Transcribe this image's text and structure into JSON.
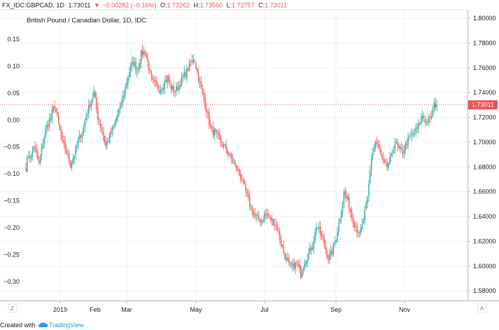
{
  "header": {
    "symbol": "FX_IDC:GBPCAD, 1D",
    "last": "1.73011",
    "change": "−0.00282 (−0.16%)",
    "o_label": "O:",
    "o": "1.73262",
    "h_label": "H:",
    "h": "1.73560",
    "l_label": "L:",
    "l": "1.72757",
    "c_label": "C:",
    "c": "1.73011"
  },
  "colors": {
    "up": "#26a69a",
    "down": "#ef5350",
    "grid": "#eef0f3",
    "axis": "#b2b5be",
    "price_line": "#ef5350",
    "brand": "#2196f3"
  },
  "chart_data": {
    "type": "candlestick",
    "title": "British Pound / Canadian Dollar, 1D, IDC",
    "x_ticks": [
      "2019",
      "Feb",
      "Mar",
      "May",
      "Jul",
      "Sep",
      "Nov"
    ],
    "right_axis": {
      "ticks": [
        "1.80000",
        "1.78000",
        "1.76000",
        "1.74000",
        "1.72000",
        "1.70000",
        "1.68000",
        "1.66000",
        "1.64000",
        "1.62000",
        "1.60000",
        "1.58000"
      ],
      "range": [
        1.5722,
        1.8068
      ]
    },
    "left_axis": {
      "ticks": [
        "0.15",
        "0.10",
        "0.05",
        "0.00",
        "−0.05",
        "−0.10",
        "−0.15",
        "−0.20",
        "−0.25",
        "−0.30"
      ],
      "range": [
        -0.3353,
        0.2047
      ]
    },
    "last_price": 1.73011,
    "last_price_label": "1.73011",
    "close_path": [
      [
        0,
        1.68
      ],
      [
        2,
        1.69
      ],
      [
        4,
        1.688
      ],
      [
        6,
        1.697
      ],
      [
        8,
        1.69
      ],
      [
        10,
        1.682
      ],
      [
        13,
        1.7
      ],
      [
        16,
        1.713
      ],
      [
        19,
        1.72
      ],
      [
        22,
        1.73
      ],
      [
        25,
        1.714
      ],
      [
        28,
        1.7
      ],
      [
        31,
        1.692
      ],
      [
        34,
        1.682
      ],
      [
        37,
        1.69
      ],
      [
        40,
        1.702
      ],
      [
        43,
        1.708
      ],
      [
        46,
        1.721
      ],
      [
        49,
        1.731
      ],
      [
        52,
        1.74
      ],
      [
        55,
        1.72
      ],
      [
        58,
        1.71
      ],
      [
        61,
        1.697
      ],
      [
        64,
        1.705
      ],
      [
        67,
        1.712
      ],
      [
        70,
        1.722
      ],
      [
        73,
        1.732
      ],
      [
        76,
        1.744
      ],
      [
        79,
        1.757
      ],
      [
        82,
        1.765
      ],
      [
        85,
        1.758
      ],
      [
        88,
        1.771
      ],
      [
        91,
        1.773
      ],
      [
        94,
        1.76
      ],
      [
        96,
        1.749
      ],
      [
        99,
        1.746
      ],
      [
        102,
        1.743
      ],
      [
        105,
        1.747
      ],
      [
        108,
        1.752
      ],
      [
        111,
        1.744
      ],
      [
        114,
        1.741
      ],
      [
        117,
        1.746
      ],
      [
        120,
        1.753
      ],
      [
        123,
        1.757
      ],
      [
        126,
        1.765
      ],
      [
        129,
        1.766
      ],
      [
        132,
        1.751
      ],
      [
        135,
        1.739
      ],
      [
        138,
        1.726
      ],
      [
        141,
        1.711
      ],
      [
        144,
        1.708
      ],
      [
        147,
        1.703
      ],
      [
        150,
        1.698
      ],
      [
        153,
        1.695
      ],
      [
        156,
        1.688
      ],
      [
        159,
        1.683
      ],
      [
        162,
        1.676
      ],
      [
        165,
        1.67
      ],
      [
        168,
        1.66
      ],
      [
        171,
        1.65
      ],
      [
        174,
        1.642
      ],
      [
        177,
        1.638
      ],
      [
        180,
        1.637
      ],
      [
        183,
        1.642
      ],
      [
        186,
        1.639
      ],
      [
        189,
        1.636
      ],
      [
        192,
        1.631
      ],
      [
        195,
        1.618
      ],
      [
        198,
        1.608
      ],
      [
        201,
        1.6
      ],
      [
        204,
        1.6
      ],
      [
        207,
        1.602
      ],
      [
        210,
        1.594
      ],
      [
        213,
        1.604
      ],
      [
        216,
        1.61
      ],
      [
        219,
        1.617
      ],
      [
        222,
        1.633
      ],
      [
        225,
        1.626
      ],
      [
        228,
        1.618
      ],
      [
        231,
        1.606
      ],
      [
        234,
        1.612
      ],
      [
        237,
        1.623
      ],
      [
        240,
        1.64
      ],
      [
        243,
        1.659
      ],
      [
        246,
        1.653
      ],
      [
        249,
        1.64
      ],
      [
        252,
        1.632
      ],
      [
        255,
        1.625
      ],
      [
        258,
        1.638
      ],
      [
        261,
        1.654
      ],
      [
        264,
        1.688
      ],
      [
        267,
        1.7
      ],
      [
        270,
        1.694
      ],
      [
        273,
        1.683
      ],
      [
        276,
        1.68
      ],
      [
        279,
        1.688
      ],
      [
        282,
        1.7
      ],
      [
        285,
        1.694
      ],
      [
        288,
        1.692
      ],
      [
        291,
        1.7
      ],
      [
        294,
        1.705
      ],
      [
        297,
        1.708
      ],
      [
        300,
        1.713
      ],
      [
        303,
        1.722
      ],
      [
        306,
        1.716
      ],
      [
        309,
        1.718
      ],
      [
        312,
        1.73
      ],
      [
        314,
        1.73
      ]
    ]
  },
  "footer": {
    "prefix": "Created with",
    "brand": "TradingView"
  },
  "corner_left": "Z",
  "corner_right": "A"
}
